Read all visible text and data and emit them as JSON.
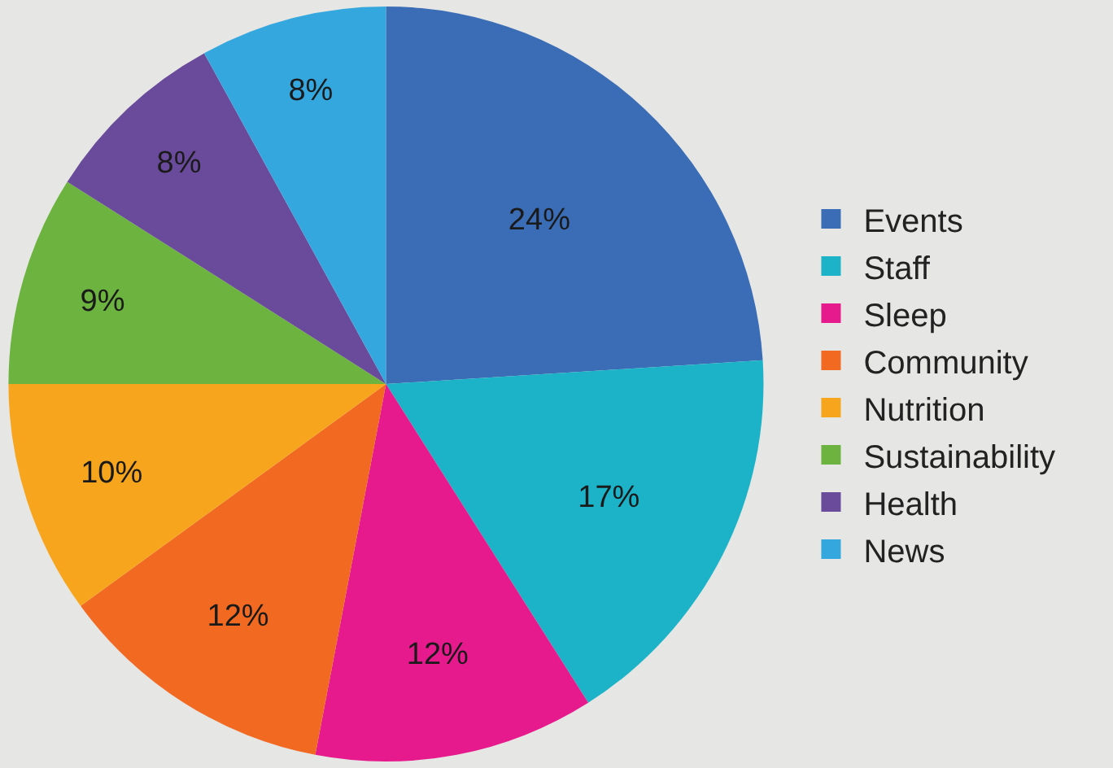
{
  "chart_data": {
    "type": "pie",
    "categories": [
      "Events",
      "Staff",
      "Sleep",
      "Community",
      "Nutrition",
      "Sustainability",
      "Health",
      "News"
    ],
    "values": [
      24,
      17,
      12,
      12,
      10,
      9,
      8,
      8
    ],
    "value_labels": [
      "24%",
      "17%",
      "12%",
      "12%",
      "10%",
      "9%",
      "8%",
      "8%"
    ],
    "colors": [
      "#3a6db5",
      "#1cb3c8",
      "#e61a8d",
      "#f26a22",
      "#f7a51c",
      "#6cb33f",
      "#6a4a9a",
      "#35a7df"
    ],
    "legend": "right"
  }
}
